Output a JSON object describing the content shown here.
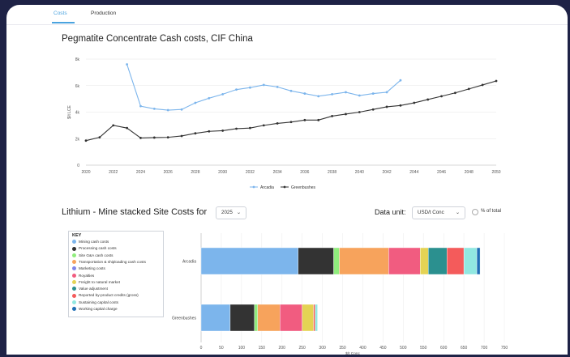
{
  "tabs": [
    {
      "label": "Costs"
    },
    {
      "label": "Production"
    }
  ],
  "chart1": {
    "title": "Pegmatite Concentrate Cash costs, CIF China",
    "chart_data": {
      "type": "line",
      "title": "Pegmatite Concentrate Cash costs, CIF China",
      "ylabel": "$/t LCE",
      "xlabel": "",
      "ylim": [
        0,
        8000
      ],
      "yticks": [
        0,
        2000,
        4000,
        6000,
        8000
      ],
      "ytick_labels": [
        "0",
        "2k",
        "4k",
        "6k",
        "8k"
      ],
      "xticks": [
        2020,
        2022,
        2024,
        2026,
        2028,
        2030,
        2032,
        2034,
        2036,
        2038,
        2040,
        2042,
        2044,
        2046,
        2048,
        2050
      ],
      "xlim": [
        2020,
        2050
      ],
      "grid": true,
      "legend": "bottom",
      "series": [
        {
          "name": "Arcadia",
          "color": "#7cb5ec",
          "x": [
            2023,
            2024,
            2025,
            2026,
            2027,
            2028,
            2029,
            2030,
            2031,
            2032,
            2033,
            2034,
            2035,
            2036,
            2037,
            2038,
            2039,
            2040,
            2041,
            2042,
            2043
          ],
          "values": [
            7600,
            4450,
            4250,
            4150,
            4200,
            4700,
            5050,
            5350,
            5700,
            5850,
            6050,
            5900,
            5600,
            5400,
            5200,
            5350,
            5500,
            5250,
            5400,
            5500,
            6400
          ]
        },
        {
          "name": "Greenbushes",
          "color": "#333333",
          "x": [
            2020,
            2021,
            2022,
            2023,
            2024,
            2025,
            2026,
            2027,
            2028,
            2029,
            2030,
            2031,
            2032,
            2033,
            2034,
            2035,
            2036,
            2037,
            2038,
            2039,
            2040,
            2041,
            2042,
            2043,
            2044,
            2045,
            2046,
            2047,
            2048,
            2049,
            2050
          ],
          "values": [
            1850,
            2100,
            3000,
            2800,
            2050,
            2080,
            2100,
            2200,
            2400,
            2550,
            2600,
            2750,
            2800,
            3000,
            3150,
            3250,
            3400,
            3400,
            3700,
            3850,
            4000,
            4200,
            4400,
            4500,
            4700,
            4950,
            5200,
            5450,
            5750,
            6050,
            6350
          ]
        }
      ]
    }
  },
  "chart2": {
    "title": "Lithium - Mine stacked Site Costs for",
    "year_select": "2025",
    "data_unit_label": "Data unit:",
    "data_unit_select": "USD/t Conc",
    "pct_label": "% of total",
    "key_title": "KEY",
    "chart_data": {
      "type": "bar",
      "orientation": "horizontal",
      "stacked": true,
      "categories": [
        "Arcadia",
        "Greenbushes"
      ],
      "xlim": [
        0,
        750
      ],
      "xticks": [
        0,
        50,
        100,
        150,
        200,
        250,
        300,
        350,
        400,
        450,
        500,
        550,
        600,
        650,
        700,
        750
      ],
      "xlabel": "$/t Conc",
      "grid": true,
      "legend": "left",
      "series": [
        {
          "name": "Mining cash costs",
          "color": "#7cb5ec",
          "values": [
            240,
            72
          ]
        },
        {
          "name": "Processing cash costs",
          "color": "#333333",
          "values": [
            88,
            60
          ]
        },
        {
          "name": "Site G&A cash costs",
          "color": "#90ed7d",
          "values": [
            14,
            8
          ]
        },
        {
          "name": "Transportation & shiploading cash costs",
          "color": "#f7a35c",
          "values": [
            122,
            55
          ]
        },
        {
          "name": "Marketing costs",
          "color": "#8085e9",
          "values": [
            0,
            0
          ]
        },
        {
          "name": "Royalties",
          "color": "#f15c80",
          "values": [
            78,
            55
          ]
        },
        {
          "name": "Freight to natural market",
          "color": "#e4d354",
          "values": [
            20,
            28
          ]
        },
        {
          "name": "Value adjustment",
          "color": "#2b908f",
          "values": [
            46,
            0
          ]
        },
        {
          "name": "Reported by-product credits (gross)",
          "color": "#f45b5b",
          "values": [
            42,
            4
          ]
        },
        {
          "name": "Sustaining capital costs",
          "color": "#91e8e1",
          "values": [
            32,
            6
          ]
        },
        {
          "name": "Working capital charge",
          "color": "#1f6fb5",
          "values": [
            8,
            0
          ]
        }
      ]
    }
  }
}
